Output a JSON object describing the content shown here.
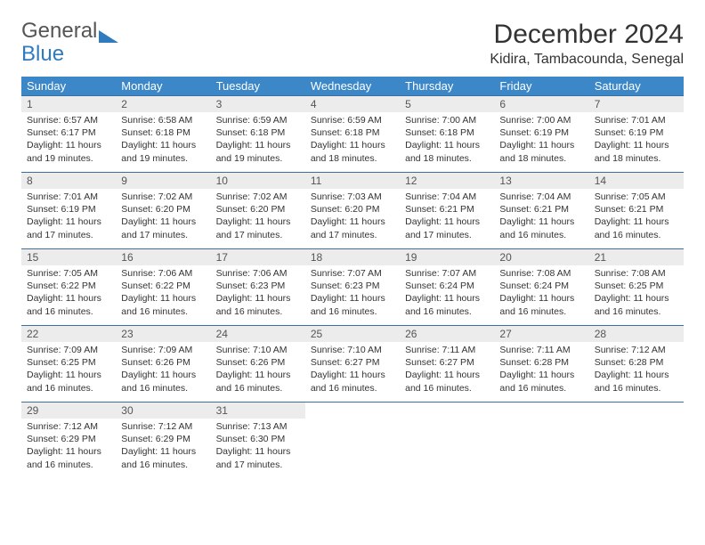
{
  "logo": {
    "top": "General",
    "bottom": "Blue"
  },
  "title": "December 2024",
  "location": "Kidira, Tambacounda, Senegal",
  "colors": {
    "header_bg": "#3b87c8",
    "header_fg": "#ffffff",
    "daynum_bg": "#ececec",
    "row_border": "#3b6fa0",
    "logo_blue": "#2f7bbf"
  },
  "day_names": [
    "Sunday",
    "Monday",
    "Tuesday",
    "Wednesday",
    "Thursday",
    "Friday",
    "Saturday"
  ],
  "weeks": [
    [
      {
        "n": "1",
        "sr": "Sunrise: 6:57 AM",
        "ss": "Sunset: 6:17 PM",
        "dl1": "Daylight: 11 hours",
        "dl2": "and 19 minutes."
      },
      {
        "n": "2",
        "sr": "Sunrise: 6:58 AM",
        "ss": "Sunset: 6:18 PM",
        "dl1": "Daylight: 11 hours",
        "dl2": "and 19 minutes."
      },
      {
        "n": "3",
        "sr": "Sunrise: 6:59 AM",
        "ss": "Sunset: 6:18 PM",
        "dl1": "Daylight: 11 hours",
        "dl2": "and 19 minutes."
      },
      {
        "n": "4",
        "sr": "Sunrise: 6:59 AM",
        "ss": "Sunset: 6:18 PM",
        "dl1": "Daylight: 11 hours",
        "dl2": "and 18 minutes."
      },
      {
        "n": "5",
        "sr": "Sunrise: 7:00 AM",
        "ss": "Sunset: 6:18 PM",
        "dl1": "Daylight: 11 hours",
        "dl2": "and 18 minutes."
      },
      {
        "n": "6",
        "sr": "Sunrise: 7:00 AM",
        "ss": "Sunset: 6:19 PM",
        "dl1": "Daylight: 11 hours",
        "dl2": "and 18 minutes."
      },
      {
        "n": "7",
        "sr": "Sunrise: 7:01 AM",
        "ss": "Sunset: 6:19 PM",
        "dl1": "Daylight: 11 hours",
        "dl2": "and 18 minutes."
      }
    ],
    [
      {
        "n": "8",
        "sr": "Sunrise: 7:01 AM",
        "ss": "Sunset: 6:19 PM",
        "dl1": "Daylight: 11 hours",
        "dl2": "and 17 minutes."
      },
      {
        "n": "9",
        "sr": "Sunrise: 7:02 AM",
        "ss": "Sunset: 6:20 PM",
        "dl1": "Daylight: 11 hours",
        "dl2": "and 17 minutes."
      },
      {
        "n": "10",
        "sr": "Sunrise: 7:02 AM",
        "ss": "Sunset: 6:20 PM",
        "dl1": "Daylight: 11 hours",
        "dl2": "and 17 minutes."
      },
      {
        "n": "11",
        "sr": "Sunrise: 7:03 AM",
        "ss": "Sunset: 6:20 PM",
        "dl1": "Daylight: 11 hours",
        "dl2": "and 17 minutes."
      },
      {
        "n": "12",
        "sr": "Sunrise: 7:04 AM",
        "ss": "Sunset: 6:21 PM",
        "dl1": "Daylight: 11 hours",
        "dl2": "and 17 minutes."
      },
      {
        "n": "13",
        "sr": "Sunrise: 7:04 AM",
        "ss": "Sunset: 6:21 PM",
        "dl1": "Daylight: 11 hours",
        "dl2": "and 16 minutes."
      },
      {
        "n": "14",
        "sr": "Sunrise: 7:05 AM",
        "ss": "Sunset: 6:21 PM",
        "dl1": "Daylight: 11 hours",
        "dl2": "and 16 minutes."
      }
    ],
    [
      {
        "n": "15",
        "sr": "Sunrise: 7:05 AM",
        "ss": "Sunset: 6:22 PM",
        "dl1": "Daylight: 11 hours",
        "dl2": "and 16 minutes."
      },
      {
        "n": "16",
        "sr": "Sunrise: 7:06 AM",
        "ss": "Sunset: 6:22 PM",
        "dl1": "Daylight: 11 hours",
        "dl2": "and 16 minutes."
      },
      {
        "n": "17",
        "sr": "Sunrise: 7:06 AM",
        "ss": "Sunset: 6:23 PM",
        "dl1": "Daylight: 11 hours",
        "dl2": "and 16 minutes."
      },
      {
        "n": "18",
        "sr": "Sunrise: 7:07 AM",
        "ss": "Sunset: 6:23 PM",
        "dl1": "Daylight: 11 hours",
        "dl2": "and 16 minutes."
      },
      {
        "n": "19",
        "sr": "Sunrise: 7:07 AM",
        "ss": "Sunset: 6:24 PM",
        "dl1": "Daylight: 11 hours",
        "dl2": "and 16 minutes."
      },
      {
        "n": "20",
        "sr": "Sunrise: 7:08 AM",
        "ss": "Sunset: 6:24 PM",
        "dl1": "Daylight: 11 hours",
        "dl2": "and 16 minutes."
      },
      {
        "n": "21",
        "sr": "Sunrise: 7:08 AM",
        "ss": "Sunset: 6:25 PM",
        "dl1": "Daylight: 11 hours",
        "dl2": "and 16 minutes."
      }
    ],
    [
      {
        "n": "22",
        "sr": "Sunrise: 7:09 AM",
        "ss": "Sunset: 6:25 PM",
        "dl1": "Daylight: 11 hours",
        "dl2": "and 16 minutes."
      },
      {
        "n": "23",
        "sr": "Sunrise: 7:09 AM",
        "ss": "Sunset: 6:26 PM",
        "dl1": "Daylight: 11 hours",
        "dl2": "and 16 minutes."
      },
      {
        "n": "24",
        "sr": "Sunrise: 7:10 AM",
        "ss": "Sunset: 6:26 PM",
        "dl1": "Daylight: 11 hours",
        "dl2": "and 16 minutes."
      },
      {
        "n": "25",
        "sr": "Sunrise: 7:10 AM",
        "ss": "Sunset: 6:27 PM",
        "dl1": "Daylight: 11 hours",
        "dl2": "and 16 minutes."
      },
      {
        "n": "26",
        "sr": "Sunrise: 7:11 AM",
        "ss": "Sunset: 6:27 PM",
        "dl1": "Daylight: 11 hours",
        "dl2": "and 16 minutes."
      },
      {
        "n": "27",
        "sr": "Sunrise: 7:11 AM",
        "ss": "Sunset: 6:28 PM",
        "dl1": "Daylight: 11 hours",
        "dl2": "and 16 minutes."
      },
      {
        "n": "28",
        "sr": "Sunrise: 7:12 AM",
        "ss": "Sunset: 6:28 PM",
        "dl1": "Daylight: 11 hours",
        "dl2": "and 16 minutes."
      }
    ],
    [
      {
        "n": "29",
        "sr": "Sunrise: 7:12 AM",
        "ss": "Sunset: 6:29 PM",
        "dl1": "Daylight: 11 hours",
        "dl2": "and 16 minutes."
      },
      {
        "n": "30",
        "sr": "Sunrise: 7:12 AM",
        "ss": "Sunset: 6:29 PM",
        "dl1": "Daylight: 11 hours",
        "dl2": "and 16 minutes."
      },
      {
        "n": "31",
        "sr": "Sunrise: 7:13 AM",
        "ss": "Sunset: 6:30 PM",
        "dl1": "Daylight: 11 hours",
        "dl2": "and 17 minutes."
      },
      {
        "empty": true
      },
      {
        "empty": true
      },
      {
        "empty": true
      },
      {
        "empty": true
      }
    ]
  ]
}
